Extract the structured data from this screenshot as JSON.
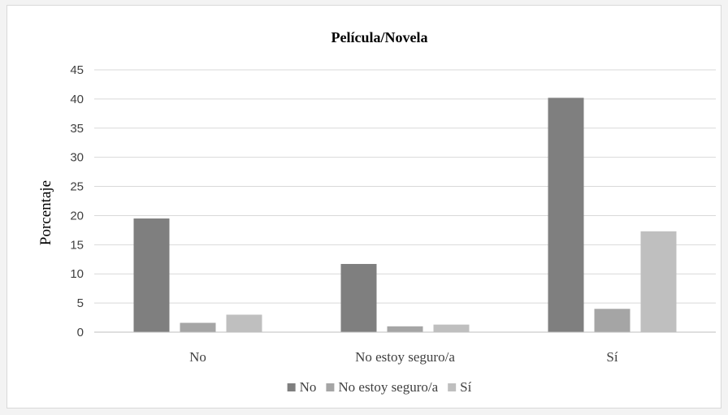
{
  "chart_data": {
    "type": "bar",
    "title": "Película/Novela",
    "xlabel": "",
    "ylabel": "Porcentaje",
    "categories": [
      "No",
      "No estoy seguro/a",
      "Sí"
    ],
    "series": [
      {
        "name": "No",
        "color": "#7f7f7f",
        "values": [
          19.5,
          11.7,
          40.2
        ]
      },
      {
        "name": "No estoy seguro/a",
        "color": "#a5a5a5",
        "values": [
          1.6,
          1.0,
          4.0
        ]
      },
      {
        "name": "Sí",
        "color": "#bfbfbf",
        "values": [
          3.0,
          1.3,
          17.3
        ]
      }
    ],
    "ylim": [
      0,
      45
    ],
    "yticks": [
      0,
      5,
      10,
      15,
      20,
      25,
      30,
      35,
      40,
      45
    ],
    "grid": true,
    "legend_position": "bottom"
  }
}
